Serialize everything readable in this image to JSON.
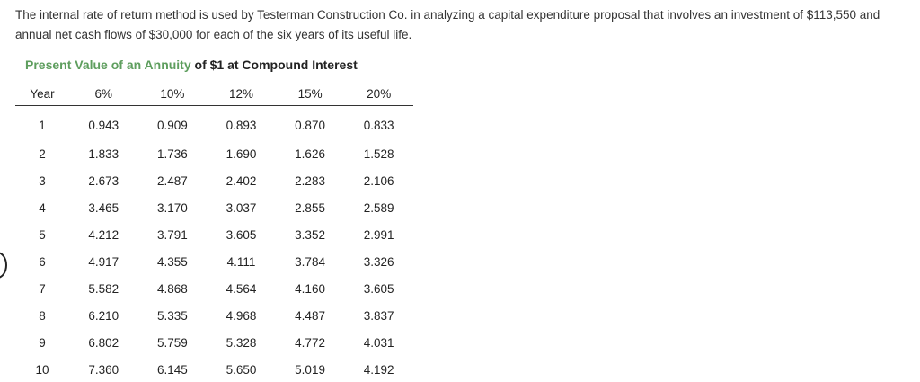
{
  "problem": {
    "text": "The internal rate of return method is used by Testerman Construction Co. in analyzing a capital expenditure proposal that involves an investment of $113,550 and annual net cash flows of $30,000 for each of the six years of its useful life."
  },
  "table": {
    "title_green": "Present Value of an Annuity",
    "title_dark": "of $1 at Compound Interest",
    "headers": [
      "Year",
      "6%",
      "10%",
      "12%",
      "15%",
      "20%"
    ],
    "rows": [
      [
        "1",
        "0.943",
        "0.909",
        "0.893",
        "0.870",
        "0.833"
      ],
      [
        "2",
        "1.833",
        "1.736",
        "1.690",
        "1.626",
        "1.528"
      ],
      [
        "3",
        "2.673",
        "2.487",
        "2.402",
        "2.283",
        "2.106"
      ],
      [
        "4",
        "3.465",
        "3.170",
        "3.037",
        "2.855",
        "2.589"
      ],
      [
        "5",
        "4.212",
        "3.791",
        "3.605",
        "3.352",
        "2.991"
      ],
      [
        "6",
        "4.917",
        "4.355",
        "4.111",
        "3.784",
        "3.326"
      ],
      [
        "7",
        "5.582",
        "4.868",
        "4.564",
        "4.160",
        "3.605"
      ],
      [
        "8",
        "6.210",
        "5.335",
        "4.968",
        "4.487",
        "3.837"
      ],
      [
        "9",
        "6.802",
        "5.759",
        "5.328",
        "4.772",
        "4.031"
      ],
      [
        "10",
        "7.360",
        "6.145",
        "5.650",
        "5.019",
        "4.192"
      ]
    ]
  },
  "colors": {
    "title_accent": "#5e9e5e",
    "text": "#222222"
  }
}
